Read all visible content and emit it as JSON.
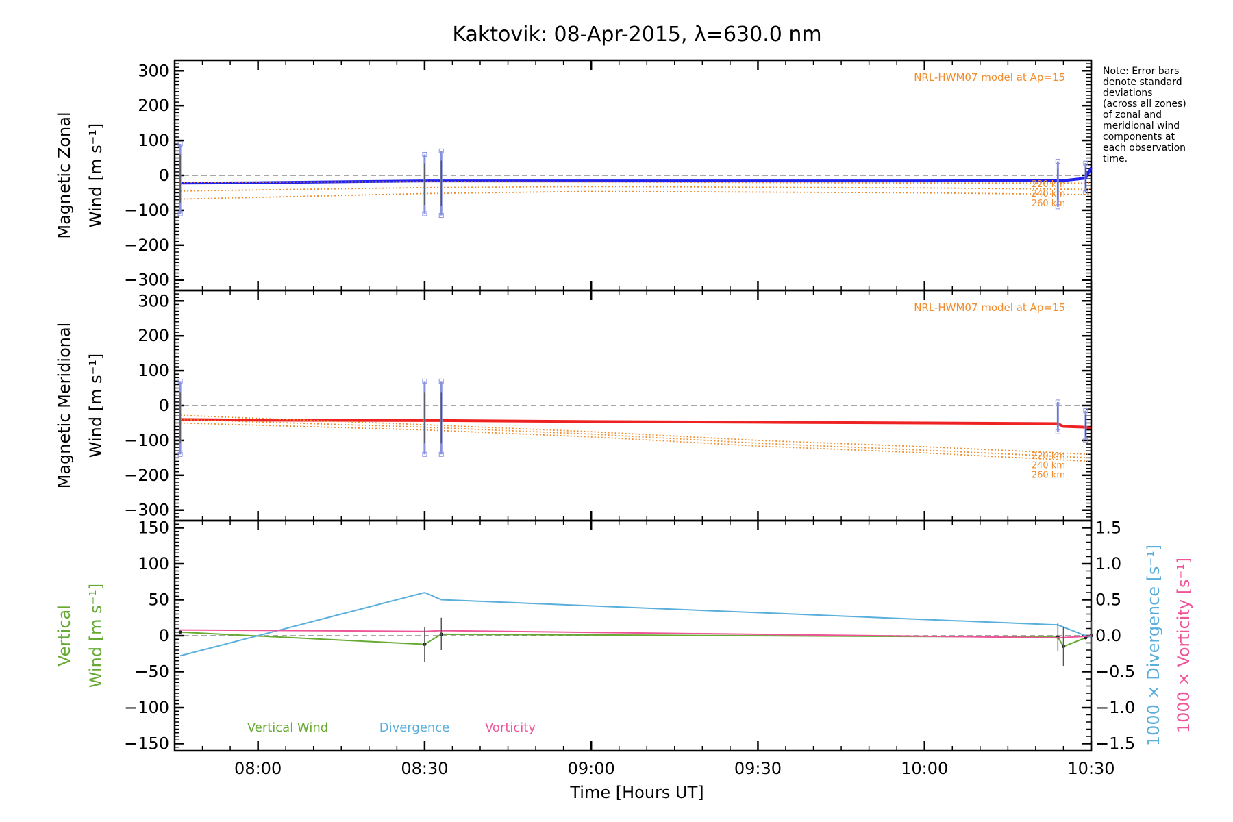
{
  "title": "Kaktovik: 08-Apr-2015, λ=630.0 nm",
  "note_lines": [
    "Note: Error bars",
    "denote standard",
    "deviations",
    "(across all zones)",
    "of zonal and",
    "meridional wind",
    "components at",
    "each observation",
    "time."
  ],
  "xlabel": "Time [Hours UT]",
  "colors": {
    "zonal": "#2222ee",
    "meridional": "#ee2222",
    "model": "#f08c2c",
    "vertical": "#66aa33",
    "divergence": "#5aaedc",
    "vorticity": "#ee5599",
    "errorbar": "#8890e0",
    "errorbar_dark": "#555555"
  },
  "chart_data": [
    {
      "type": "line",
      "panel": "zonal",
      "ylabel_line1": "Magnetic Zonal",
      "ylabel_line2": "Wind [m s⁻¹]",
      "model_label": "NRL-HWM07 model at Ap=15",
      "xlim": [
        "07:45",
        "10:30"
      ],
      "x_ticks": [
        "08:00",
        "08:30",
        "09:00",
        "09:30",
        "10:00",
        "10:30"
      ],
      "ylim": [
        -330,
        330
      ],
      "y_ticks": [
        "300",
        "200",
        "100",
        "0",
        "−100",
        "−200",
        "−300"
      ],
      "series": [
        {
          "name": "",
          "style": "solid-thick",
          "color": "zonal",
          "x": [
            "07:46",
            "08:00",
            "08:30",
            "08:33",
            "09:00",
            "09:30",
            "10:00",
            "10:24",
            "10:25",
            "10:29",
            "10:30"
          ],
          "y": [
            -22,
            -21,
            -16,
            -16,
            -16,
            -16,
            -16,
            -15,
            -15,
            -8,
            22
          ]
        },
        {
          "name": "220 km",
          "style": "dotted",
          "color": "model",
          "x": [
            "07:46",
            "08:30",
            "09:00",
            "10:00",
            "10:30"
          ],
          "y": [
            -20,
            -18,
            -19,
            -22,
            -22
          ]
        },
        {
          "name": "240 km",
          "style": "dotted",
          "color": "model",
          "x": [
            "07:46",
            "08:30",
            "09:00",
            "10:00",
            "10:30"
          ],
          "y": [
            -45,
            -35,
            -32,
            -36,
            -40
          ]
        },
        {
          "name": "260 km",
          "style": "dotted",
          "color": "model",
          "x": [
            "07:46",
            "08:30",
            "09:00",
            "10:00",
            "10:30"
          ],
          "y": [
            -68,
            -52,
            -46,
            -50,
            -55
          ]
        }
      ],
      "errorbars": [
        {
          "x": "07:46",
          "low": -110,
          "high": 90
        },
        {
          "x": "08:30",
          "low": -110,
          "high": 60
        },
        {
          "x": "08:33",
          "low": -115,
          "high": 70
        },
        {
          "x": "10:24",
          "low": -90,
          "high": 40
        },
        {
          "x": "10:29",
          "low": -50,
          "high": 35
        }
      ],
      "model_height_labels": [
        "220 km",
        "240 km",
        "260 km"
      ]
    },
    {
      "type": "line",
      "panel": "meridional",
      "ylabel_line1": "Magnetic Meridional",
      "ylabel_line2": "Wind [m s⁻¹]",
      "model_label": "NRL-HWM07 model at Ap=15",
      "xlim": [
        "07:45",
        "10:30"
      ],
      "ylim": [
        -330,
        330
      ],
      "y_ticks": [
        "300",
        "200",
        "100",
        "0",
        "−100",
        "−200",
        "−300"
      ],
      "series": [
        {
          "name": "",
          "style": "solid-thick",
          "color": "meridional",
          "x": [
            "07:46",
            "08:00",
            "08:30",
            "08:33",
            "09:00",
            "09:30",
            "10:00",
            "10:24",
            "10:25",
            "10:29",
            "10:30"
          ],
          "y": [
            -40,
            -42,
            -43,
            -43,
            -46,
            -48,
            -50,
            -52,
            -60,
            -62,
            -65
          ]
        },
        {
          "name": "220 km",
          "style": "dotted",
          "color": "model",
          "x": [
            "07:46",
            "08:30",
            "09:00",
            "09:30",
            "10:00",
            "10:30"
          ],
          "y": [
            -28,
            -55,
            -75,
            -100,
            -118,
            -140
          ]
        },
        {
          "name": "240 km",
          "style": "dotted",
          "color": "model",
          "x": [
            "07:46",
            "08:30",
            "09:00",
            "09:30",
            "10:00",
            "10:30"
          ],
          "y": [
            -40,
            -62,
            -82,
            -108,
            -128,
            -150
          ]
        },
        {
          "name": "260 km",
          "style": "dotted",
          "color": "model",
          "x": [
            "07:46",
            "08:30",
            "09:00",
            "09:30",
            "10:00",
            "10:30"
          ],
          "y": [
            -50,
            -70,
            -90,
            -116,
            -136,
            -160
          ]
        }
      ],
      "errorbars": [
        {
          "x": "07:46",
          "low": -140,
          "high": 70
        },
        {
          "x": "08:30",
          "low": -140,
          "high": 70
        },
        {
          "x": "08:33",
          "low": -140,
          "high": 70
        },
        {
          "x": "10:24",
          "low": -75,
          "high": 10
        },
        {
          "x": "10:29",
          "low": -100,
          "high": -15
        }
      ],
      "model_height_labels": [
        "220 km",
        "240 km",
        "260 km"
      ]
    },
    {
      "type": "line",
      "panel": "vertical",
      "ylabel_left_line1": "Vertical",
      "ylabel_left_line2": "Wind [m s⁻¹]",
      "ylabel_right1": "1000 × Divergence [s⁻¹]",
      "ylabel_right2": "1000 × Vorticity [s⁻¹]",
      "xlim": [
        "07:45",
        "10:30"
      ],
      "ylim": [
        -160,
        160
      ],
      "y_ticks": [
        "150",
        "100",
        "50",
        "0",
        "−50",
        "−100",
        "−150"
      ],
      "y2lim": [
        -1.6,
        1.6
      ],
      "y2_ticks": [
        "1.5",
        "1.0",
        "0.5",
        "0.0",
        "−0.5",
        "−1.0",
        "−1.5"
      ],
      "legend": [
        "Vertical Wind",
        "Divergence",
        "Vorticity"
      ],
      "series": [
        {
          "name": "Vertical Wind",
          "color": "vertical",
          "axis": "left",
          "x": [
            "07:46",
            "08:30",
            "08:33",
            "10:24",
            "10:25",
            "10:29",
            "10:30"
          ],
          "y": [
            5,
            -12,
            2,
            -2,
            -15,
            -3,
            0
          ]
        },
        {
          "name": "Divergence",
          "color": "divergence",
          "axis": "right",
          "x": [
            "07:46",
            "08:30",
            "08:33",
            "10:24",
            "10:29",
            "10:30"
          ],
          "y": [
            -0.28,
            0.6,
            0.5,
            0.15,
            0.0,
            -0.02
          ]
        },
        {
          "name": "Vorticity",
          "color": "vorticity",
          "axis": "right",
          "x": [
            "07:46",
            "08:30",
            "08:33",
            "10:24",
            "10:29",
            "10:30"
          ],
          "y": [
            0.08,
            0.06,
            0.07,
            -0.03,
            -0.01,
            0.0
          ]
        }
      ],
      "errorbars": [
        {
          "x": "08:30",
          "low": -37,
          "high": 12
        },
        {
          "x": "08:33",
          "low": -20,
          "high": 25
        },
        {
          "x": "10:24",
          "low": -22,
          "high": 18
        },
        {
          "x": "10:25",
          "low": -42,
          "high": 12
        },
        {
          "x": "10:30",
          "low": -20,
          "high": 20
        }
      ]
    }
  ]
}
